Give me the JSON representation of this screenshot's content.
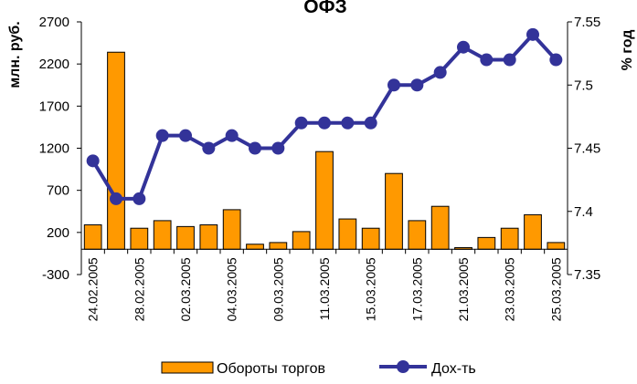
{
  "chart_data": {
    "type": "bar+line",
    "title": "ОФЗ",
    "y_left_label": "млн. руб.",
    "y_right_label": "% год",
    "y_left_range": [
      -300,
      2700
    ],
    "y_left_ticks": [
      "2700",
      "2200",
      "1700",
      "1200",
      "700",
      "200",
      "-300"
    ],
    "y_right_range": [
      7.35,
      7.55
    ],
    "y_right_ticks": [
      "7.55",
      "7.5",
      "7.45",
      "7.4",
      "7.35"
    ],
    "x_tick_labels": [
      "24.02.2005",
      "28.02.2005",
      "02.03.2005",
      "04.03.2005",
      "09.03.2005",
      "11.03.2005",
      "15.03.2005",
      "17.03.2005",
      "21.03.2005",
      "23.03.2005",
      "25.03.2005"
    ],
    "bar_series": {
      "name": "Обороты торгов",
      "color": "#FF9900",
      "values": [
        290,
        2340,
        250,
        340,
        270,
        290,
        470,
        60,
        80,
        210,
        1160,
        360,
        250,
        900,
        340,
        510,
        20,
        140,
        250,
        410,
        80
      ]
    },
    "line_series": {
      "name": "Дох-ть",
      "color": "#333399",
      "values": [
        7.44,
        7.41,
        7.41,
        7.46,
        7.46,
        7.45,
        7.46,
        7.45,
        7.45,
        7.47,
        7.47,
        7.47,
        7.47,
        7.5,
        7.5,
        7.51,
        7.53,
        7.52,
        7.52,
        7.54,
        7.52
      ]
    },
    "legend_position": "bottom",
    "grid": false
  }
}
